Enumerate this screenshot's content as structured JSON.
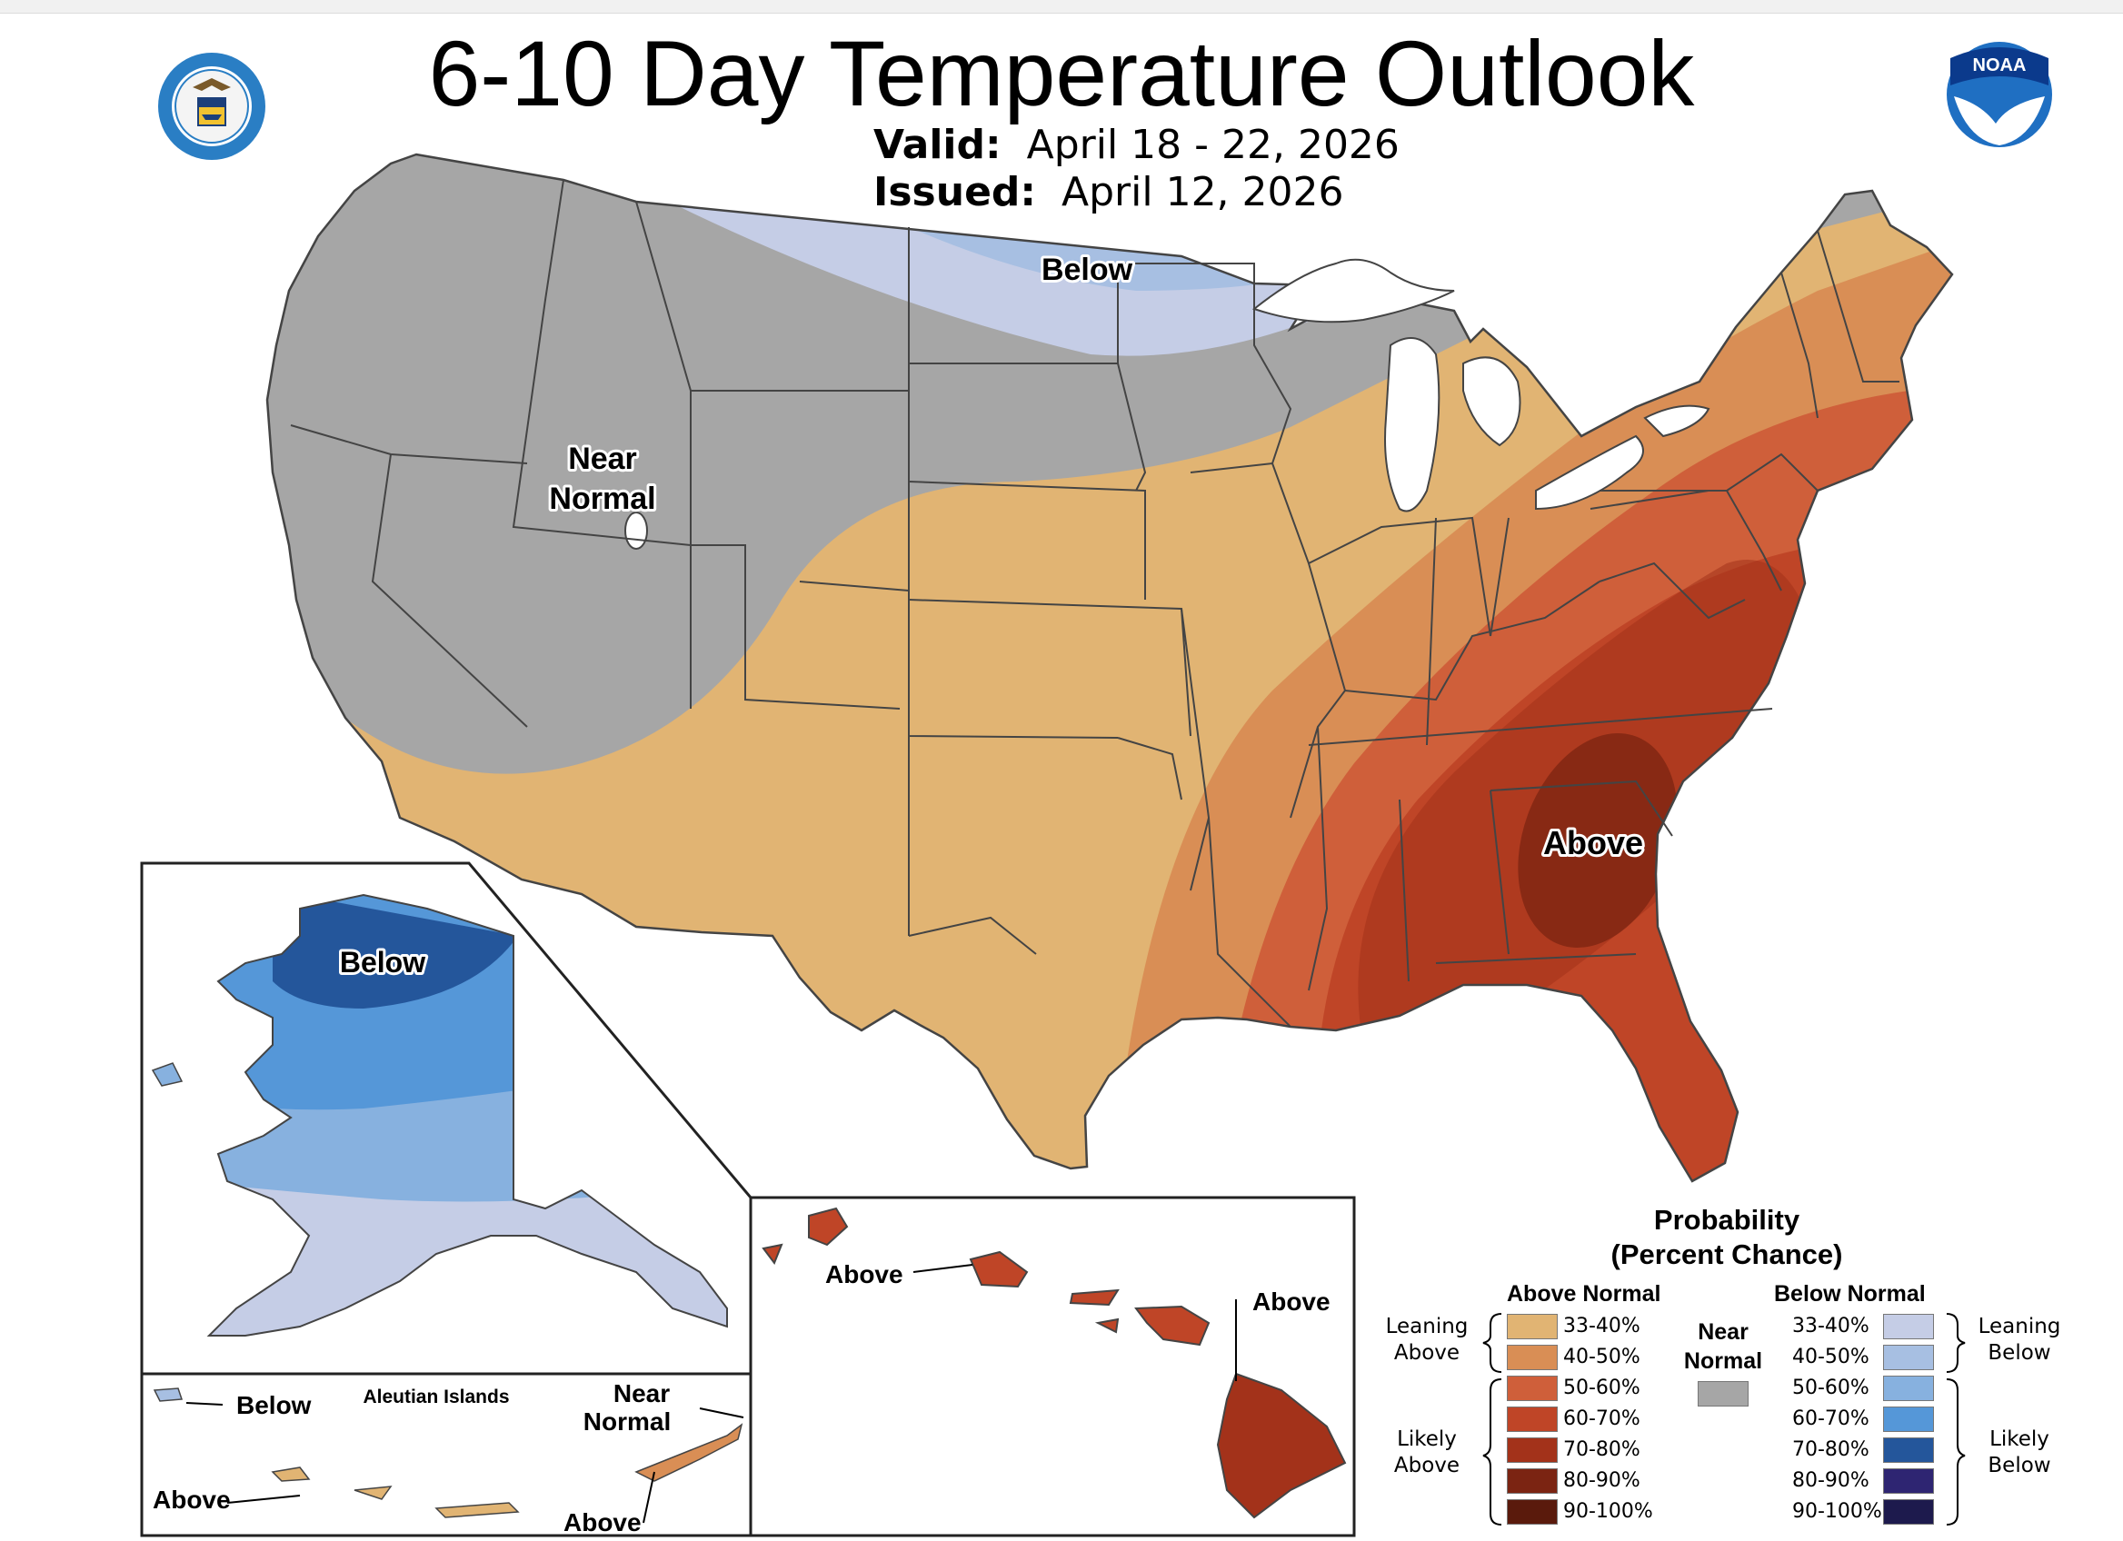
{
  "title": "6-10 Day Temperature Outlook",
  "valid_label": "Valid:",
  "valid_value": "April 18 - 22, 2026",
  "issued_label": "Issued:",
  "issued_value": "April 12, 2026",
  "logos": {
    "left": "department-of-commerce-seal",
    "right": "noaa-logo",
    "noaa_text": "NOAA"
  },
  "map_labels": {
    "conus_below": "Below",
    "conus_near_1": "Near",
    "conus_near_2": "Normal",
    "conus_above": "Above",
    "alaska_below": "Below",
    "hawaii_above_1": "Above",
    "hawaii_above_2": "Above",
    "aleutian_title": "Aleutian Islands",
    "aleutian_below": "Below",
    "aleutian_above_1": "Above",
    "aleutian_above_2": "Above",
    "aleutian_near_1": "Near",
    "aleutian_near_2": "Normal"
  },
  "legend": {
    "title_1": "Probability",
    "title_2": "(Percent Chance)",
    "above_header": "Above Normal",
    "below_header": "Below Normal",
    "near_1": "Near",
    "near_2": "Normal",
    "near_color": "#a6a6a6",
    "leaning_above_1": "Leaning",
    "leaning_above_2": "Above",
    "likely_above_1": "Likely",
    "likely_above_2": "Above",
    "leaning_below_1": "Leaning",
    "leaning_below_2": "Below",
    "likely_below_1": "Likely",
    "likely_below_2": "Below",
    "above": [
      {
        "label": "33-40%",
        "color": "#e1b473"
      },
      {
        "label": "40-50%",
        "color": "#d98e55"
      },
      {
        "label": "50-60%",
        "color": "#cf5f3a"
      },
      {
        "label": "60-70%",
        "color": "#bf4527"
      },
      {
        "label": "70-80%",
        "color": "#a3321a"
      },
      {
        "label": "80-90%",
        "color": "#7b2412"
      },
      {
        "label": "90-100%",
        "color": "#5a1a0c"
      }
    ],
    "below": [
      {
        "label": "33-40%",
        "color": "#c5cde6"
      },
      {
        "label": "40-50%",
        "color": "#a7bfe2"
      },
      {
        "label": "50-60%",
        "color": "#87b1df"
      },
      {
        "label": "60-70%",
        "color": "#5597d8"
      },
      {
        "label": "70-80%",
        "color": "#24569b"
      },
      {
        "label": "80-90%",
        "color": "#2e2572"
      },
      {
        "label": "90-100%",
        "color": "#1d1a4d"
      }
    ]
  }
}
